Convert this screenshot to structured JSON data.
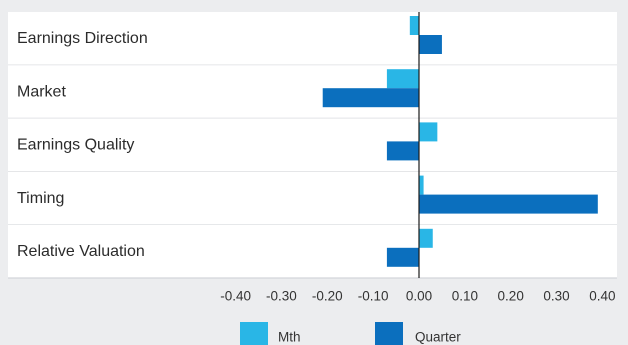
{
  "chart_data": {
    "type": "bar",
    "orientation": "horizontal",
    "categories": [
      "Earnings Direction",
      "Market",
      "Earnings Quality",
      "Timing",
      "Relative Valuation"
    ],
    "series": [
      {
        "name": "Mth",
        "color": "#29b6e6",
        "values": [
          -0.02,
          -0.07,
          0.04,
          0.01,
          0.03
        ]
      },
      {
        "name": "Quarter",
        "color": "#0b6fbe",
        "values": [
          0.05,
          -0.21,
          -0.07,
          0.39,
          -0.07
        ]
      }
    ],
    "x_ticks": [
      -0.4,
      -0.3,
      -0.2,
      -0.1,
      0.0,
      0.1,
      0.2,
      0.3,
      0.4
    ],
    "x_tick_labels": [
      "-0.40",
      "-0.30",
      "-0.20",
      "-0.10",
      "0.00",
      "0.10",
      "0.20",
      "0.30",
      "0.40"
    ],
    "xlim": [
      -0.4,
      0.4
    ],
    "grid": false,
    "legend_position": "bottom"
  },
  "colors": {
    "background": "#ecedef",
    "row_background": "#ffffff",
    "separator": "#d3d5d9",
    "zero_line": "#1a1a1a"
  }
}
